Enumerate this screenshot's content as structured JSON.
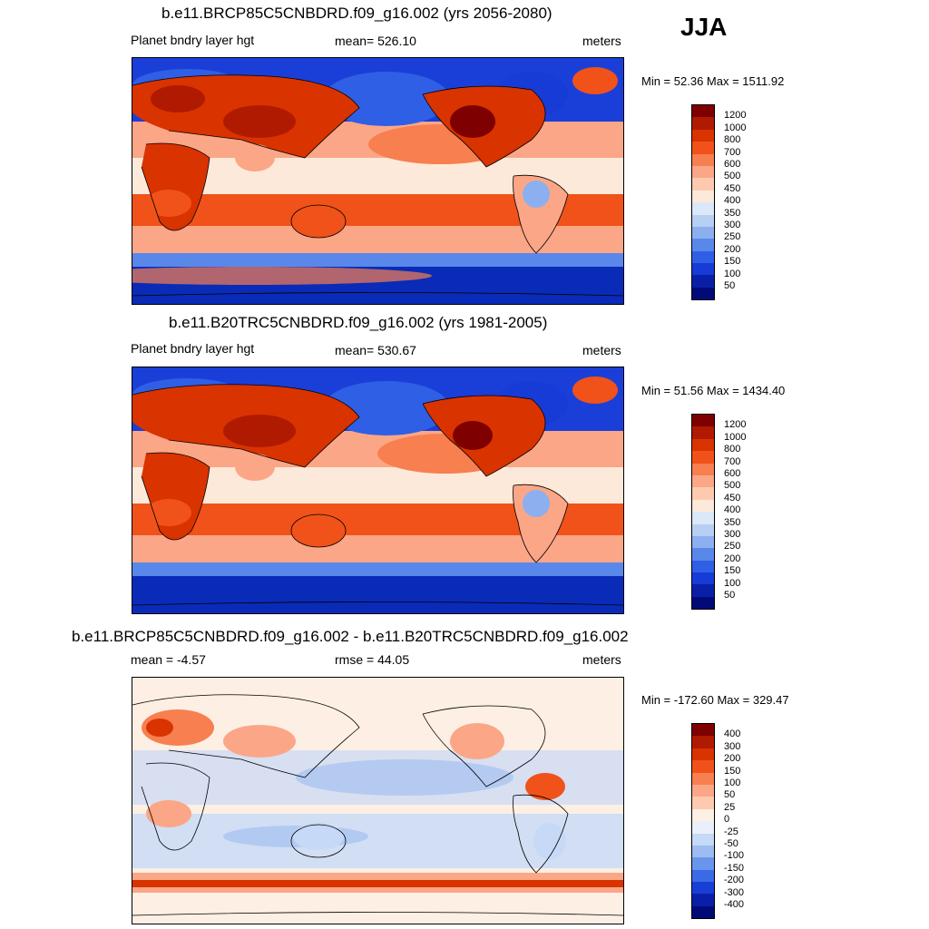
{
  "season": "JJA",
  "panels": [
    {
      "title": "b.e11.BRCP85C5CNBDRD.f09_g16.002 (yrs 2056-2080)",
      "left_label": "Planet bndry layer hgt",
      "center_label": "mean= 526.10",
      "right_label": "meters",
      "minmax": "Min =  52.36 Max = 1511.92",
      "colorbar": [
        "1200",
        "1000",
        "800",
        "700",
        "600",
        "500",
        "450",
        "400",
        "350",
        "300",
        "250",
        "200",
        "150",
        "100",
        "50"
      ],
      "colors": [
        "#7f0000",
        "#b01a00",
        "#d93300",
        "#f0521a",
        "#f77f50",
        "#fba687",
        "#fdcab0",
        "#fde9d9",
        "#dbe8f8",
        "#b7cff3",
        "#8cb0ef",
        "#5a88ea",
        "#2f5fe5",
        "#163bd6",
        "#0a1fa8",
        "#020a78"
      ]
    },
    {
      "title": "b.e11.B20TRC5CNBDRD.f09_g16.002 (yrs 1981-2005)",
      "left_label": "Planet bndry layer hgt",
      "center_label": "mean= 530.67",
      "right_label": "meters",
      "minmax": "Min =  51.56 Max = 1434.40",
      "colorbar": [
        "1200",
        "1000",
        "800",
        "700",
        "600",
        "500",
        "450",
        "400",
        "350",
        "300",
        "250",
        "200",
        "150",
        "100",
        "50"
      ],
      "colors": [
        "#7f0000",
        "#b01a00",
        "#d93300",
        "#f0521a",
        "#f77f50",
        "#fba687",
        "#fdcab0",
        "#fde9d9",
        "#dbe8f8",
        "#b7cff3",
        "#8cb0ef",
        "#5a88ea",
        "#2f5fe5",
        "#163bd6",
        "#0a1fa8",
        "#020a78"
      ]
    },
    {
      "title": "b.e11.BRCP85C5CNBDRD.f09_g16.002 - b.e11.B20TRC5CNBDRD.f09_g16.002",
      "left_label": "mean =  -4.57",
      "center_label": "rmse =  44.05",
      "right_label": "meters",
      "minmax": "Min = -172.60 Max = 329.47",
      "colorbar": [
        "400",
        "300",
        "200",
        "150",
        "100",
        "50",
        "25",
        "0",
        "-25",
        "-50",
        "-100",
        "-150",
        "-200",
        "-300",
        "-400"
      ],
      "colors": [
        "#7f0000",
        "#b01a00",
        "#d93300",
        "#f0521a",
        "#f77f50",
        "#fba687",
        "#fdcab0",
        "#fdefe4",
        "#e9f0fb",
        "#c6d9f6",
        "#9dbcf1",
        "#6a95ec",
        "#3a6ae6",
        "#173fd6",
        "#0a1fa8",
        "#020a78"
      ]
    }
  ],
  "map_colors": {
    "ocean_deep_blue": "#1a3fd8",
    "polar_blue": "#2a55e0",
    "subtropic_orange": "#f0521a",
    "midlat_salmon": "#fba687",
    "tropics_pale": "#fde9d9",
    "land_red": "#d93300",
    "land_dark": "#b01a00",
    "diff_neutral": "#fdefe4",
    "diff_blue": "#c6d9f6",
    "diff_red": "#f77f50"
  }
}
